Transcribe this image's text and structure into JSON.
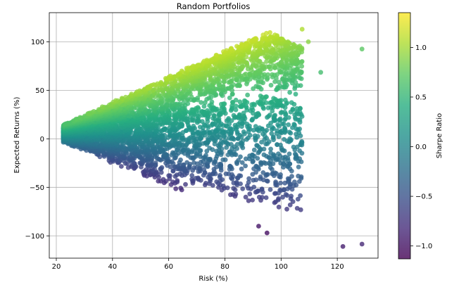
{
  "chart_data": {
    "type": "scatter",
    "title": "Random Portfolios",
    "xlabel": "Risk (%)",
    "ylabel": "Expected Returns (%)",
    "xlim": [
      17.5,
      134.5
    ],
    "ylim": [
      -123,
      130
    ],
    "x_ticks": [
      20,
      40,
      60,
      80,
      100,
      120
    ],
    "y_ticks": [
      -100,
      -50,
      0,
      50,
      100
    ],
    "grid": true,
    "colorbar": {
      "label": "Sharpe Ratio",
      "colormap": "viridis",
      "alpha": 0.8,
      "range": [
        -1.13,
        1.35
      ],
      "ticks": [
        -1.0,
        -0.5,
        0.0,
        0.5,
        1.0
      ],
      "tick_labels": [
        "−1.0",
        "−0.5",
        "0.0",
        "0.5",
        "1.0"
      ]
    },
    "point_cloud": {
      "count": 5000,
      "marker": "circle",
      "description": "5000 randomly generated portfolios forming a fan that widens with risk: upper band rises roughly from 15% return at 23% risk to ~110% at 95% risk, lower band falls from ~0% to ~-90%; color encodes Sharpe ratio (return / risk)."
    },
    "outliers": [
      {
        "x": 128.8,
        "y": 92.5
      },
      {
        "x": 114.1,
        "y": 68.5
      },
      {
        "x": 109.7,
        "y": 100
      },
      {
        "x": 107.5,
        "y": 113
      },
      {
        "x": 102.6,
        "y": 14.5
      },
      {
        "x": 93.5,
        "y": 5
      },
      {
        "x": 99,
        "y": -63
      },
      {
        "x": 95,
        "y": -97
      },
      {
        "x": 92,
        "y": -90
      },
      {
        "x": 122,
        "y": -111
      },
      {
        "x": 128.8,
        "y": -108.5
      }
    ]
  }
}
